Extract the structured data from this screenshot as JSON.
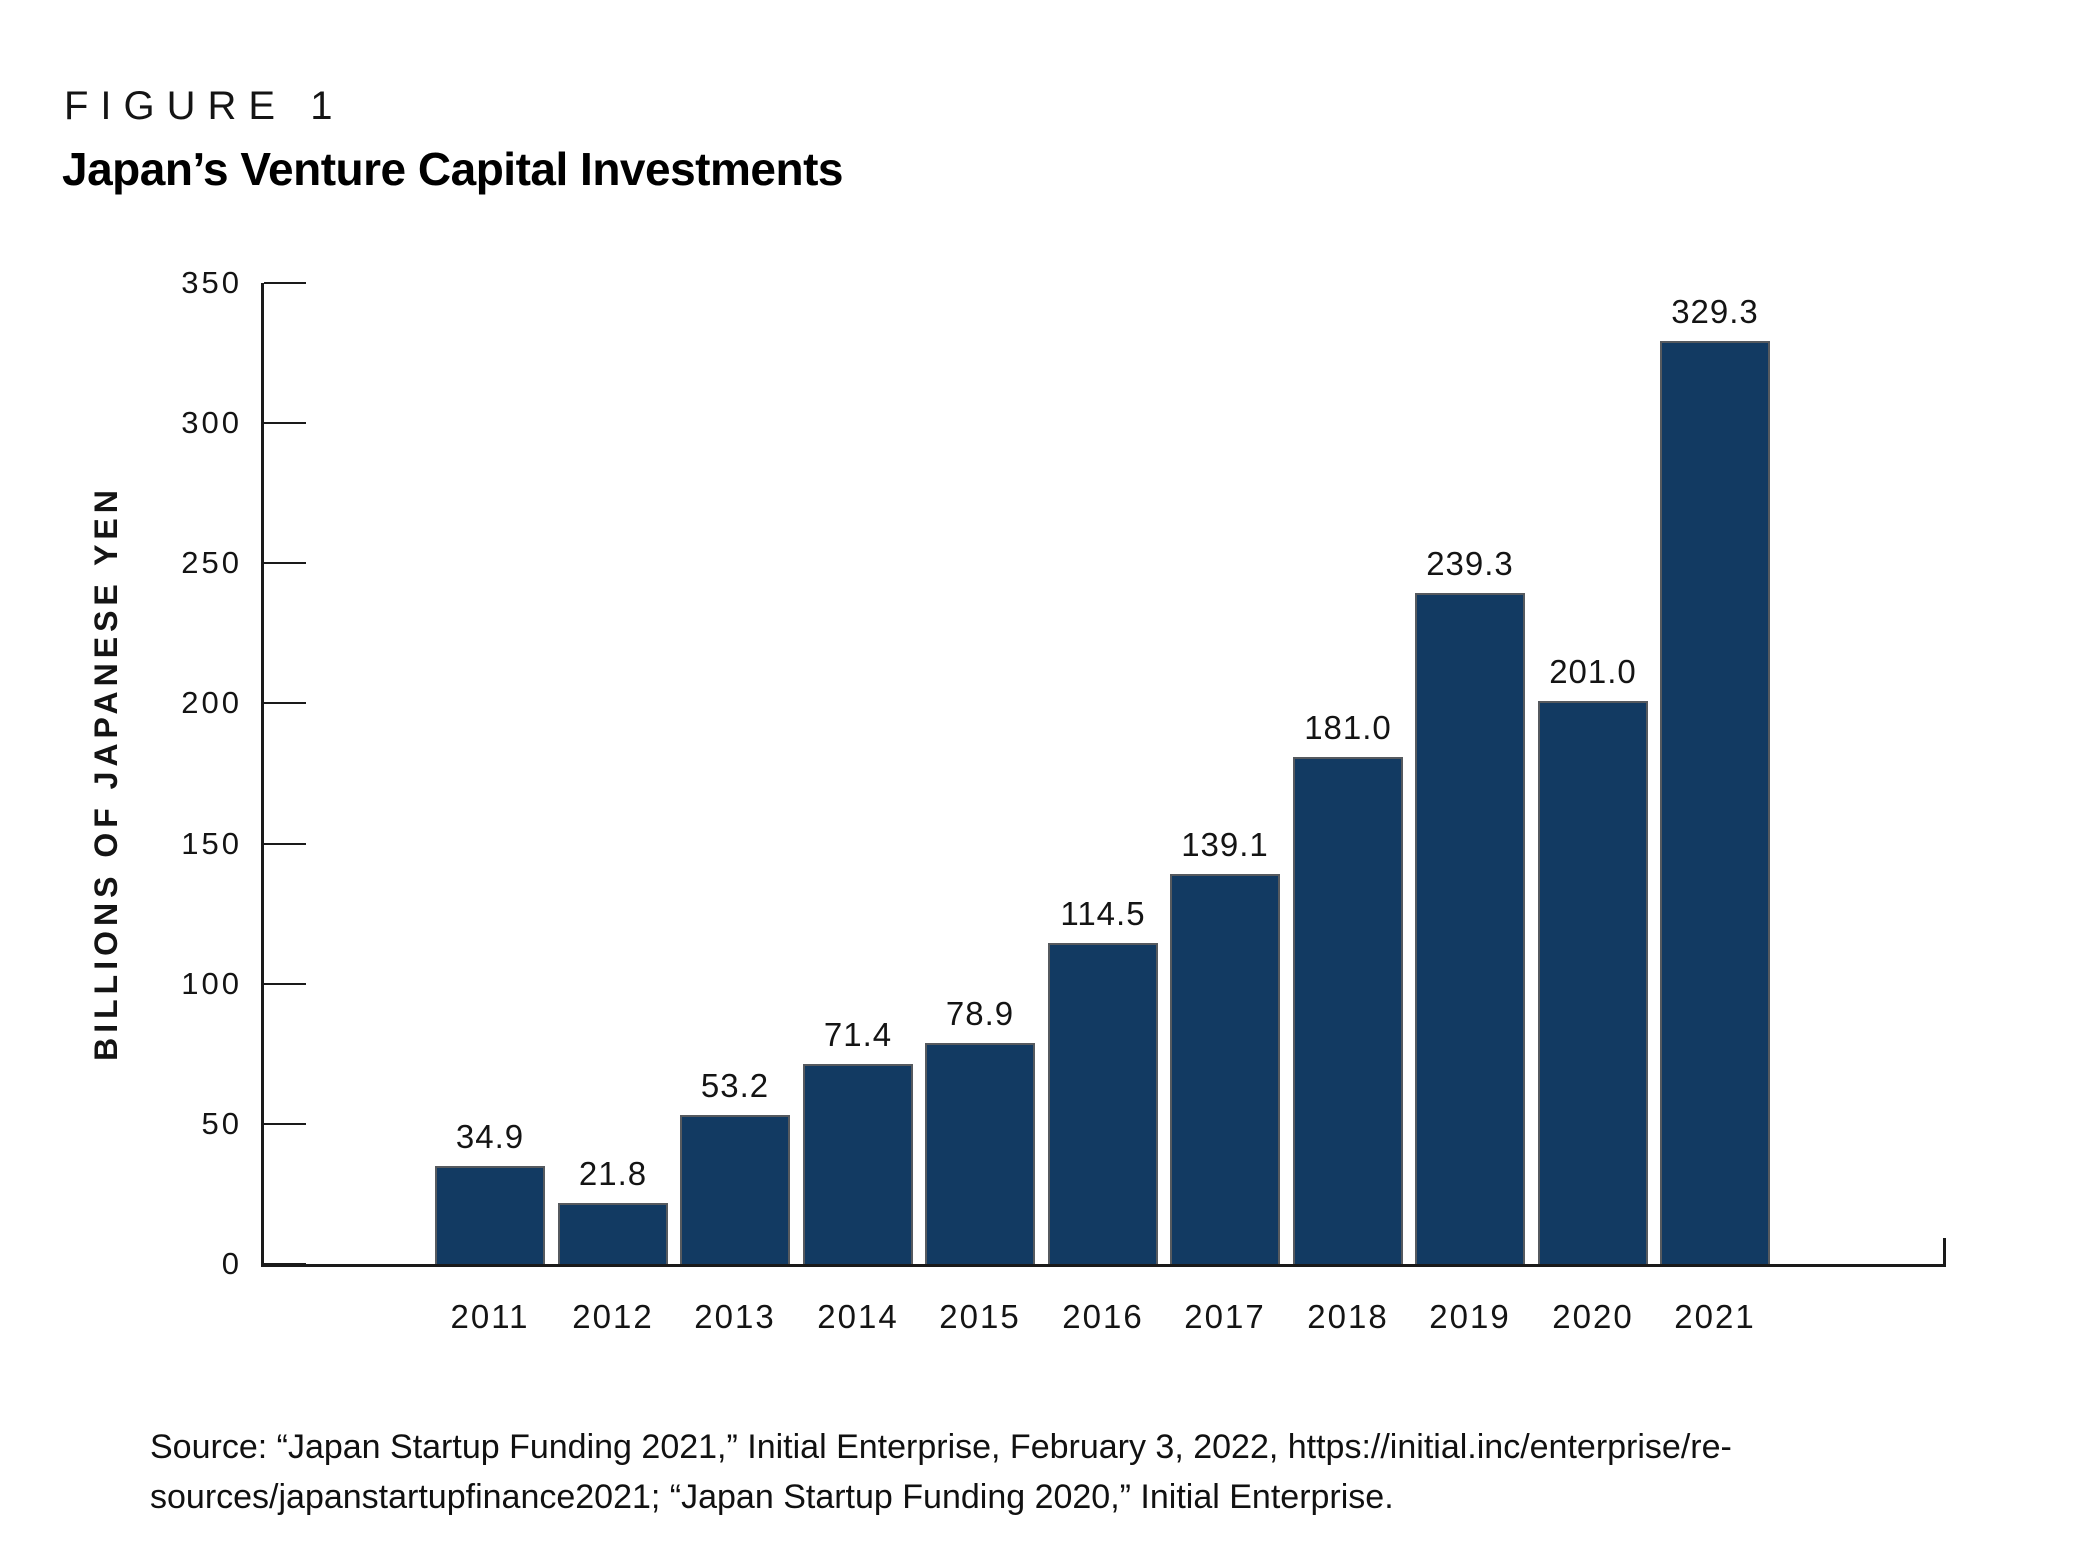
{
  "figure_label": "FIGURE 1",
  "title": "Japan’s Venture Capital Investments",
  "chart_data": {
    "type": "bar",
    "title": "Japan’s Venture Capital Investments",
    "categories": [
      "2011",
      "2012",
      "2013",
      "2014",
      "2015",
      "2016",
      "2017",
      "2018",
      "2019",
      "2020",
      "2021"
    ],
    "values": [
      34.9,
      21.8,
      53.2,
      71.4,
      78.9,
      114.5,
      139.1,
      181.0,
      239.3,
      201.0,
      329.3
    ],
    "value_labels": [
      "34.9",
      "21.8",
      "53.2",
      "71.4",
      "78.9",
      "114.5",
      "139.1",
      "181.0",
      "239.3",
      "201.0",
      "329.3"
    ],
    "xlabel": "",
    "ylabel": "BILLIONS OF JAPANESE YEN",
    "ylim": [
      0,
      350
    ],
    "yticks": [
      0,
      50,
      100,
      150,
      200,
      250,
      300,
      350
    ],
    "grid": false,
    "legend": false,
    "bar_color": "#123A62",
    "bar_stroke_color": "#565a5f",
    "axis_color": "#1a1a1a"
  },
  "source": {
    "lines": [
      "Source: “Japan Startup Funding 2021,” Initial Enterprise, February 3, 2022, https://initial.inc/enterprise/re-",
      "sources/japanstartupfinance2021; “Japan Startup Funding 2020,” Initial Enterprise."
    ]
  }
}
